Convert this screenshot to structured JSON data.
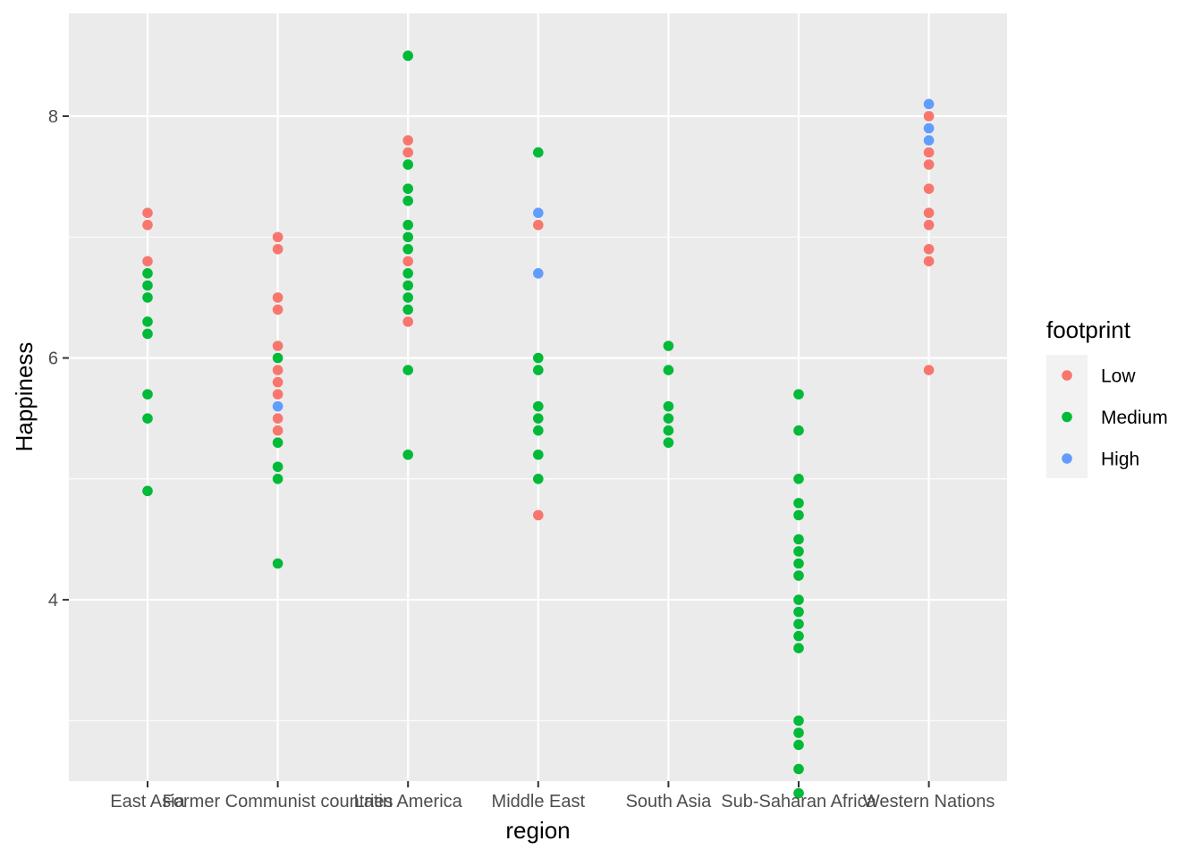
{
  "chart_data": {
    "type": "scatter",
    "title": "",
    "xlabel": "region",
    "ylabel": "Happiness",
    "ylim": [
      2.5,
      8.85
    ],
    "y_ticks": [
      4,
      6,
      8
    ],
    "grid": true,
    "legend_placement": "right",
    "legend_title": "footprint",
    "categories": [
      "East Asia",
      "Former Communist countries",
      "Latin America",
      "Middle East",
      "South Asia",
      "Sub-Saharan Africa",
      "Western Nations"
    ],
    "series": [
      {
        "name": "Low",
        "color": "#F8766D",
        "points": [
          {
            "x": "East Asia",
            "y": 7.2
          },
          {
            "x": "East Asia",
            "y": 7.1
          },
          {
            "x": "East Asia",
            "y": 6.8
          },
          {
            "x": "Former Communist countries",
            "y": 7.0
          },
          {
            "x": "Former Communist countries",
            "y": 6.9
          },
          {
            "x": "Former Communist countries",
            "y": 6.5
          },
          {
            "x": "Former Communist countries",
            "y": 6.4
          },
          {
            "x": "Former Communist countries",
            "y": 6.1
          },
          {
            "x": "Former Communist countries",
            "y": 5.9
          },
          {
            "x": "Former Communist countries",
            "y": 5.8
          },
          {
            "x": "Former Communist countries",
            "y": 5.7
          },
          {
            "x": "Former Communist countries",
            "y": 5.5
          },
          {
            "x": "Former Communist countries",
            "y": 5.4
          },
          {
            "x": "Latin America",
            "y": 7.8
          },
          {
            "x": "Latin America",
            "y": 7.7
          },
          {
            "x": "Latin America",
            "y": 6.8
          },
          {
            "x": "Latin America",
            "y": 6.3
          },
          {
            "x": "Middle East",
            "y": 7.1
          },
          {
            "x": "Middle East",
            "y": 4.7
          },
          {
            "x": "Western Nations",
            "y": 8.0
          },
          {
            "x": "Western Nations",
            "y": 7.7
          },
          {
            "x": "Western Nations",
            "y": 7.6
          },
          {
            "x": "Western Nations",
            "y": 7.4
          },
          {
            "x": "Western Nations",
            "y": 7.2
          },
          {
            "x": "Western Nations",
            "y": 7.1
          },
          {
            "x": "Western Nations",
            "y": 6.9
          },
          {
            "x": "Western Nations",
            "y": 6.8
          },
          {
            "x": "Western Nations",
            "y": 5.9
          }
        ]
      },
      {
        "name": "Medium",
        "color": "#00BA38",
        "points": [
          {
            "x": "East Asia",
            "y": 6.7
          },
          {
            "x": "East Asia",
            "y": 6.6
          },
          {
            "x": "East Asia",
            "y": 6.5
          },
          {
            "x": "East Asia",
            "y": 6.3
          },
          {
            "x": "East Asia",
            "y": 6.2
          },
          {
            "x": "East Asia",
            "y": 5.7
          },
          {
            "x": "East Asia",
            "y": 5.5
          },
          {
            "x": "East Asia",
            "y": 4.9
          },
          {
            "x": "Former Communist countries",
            "y": 6.0
          },
          {
            "x": "Former Communist countries",
            "y": 5.3
          },
          {
            "x": "Former Communist countries",
            "y": 5.1
          },
          {
            "x": "Former Communist countries",
            "y": 5.0
          },
          {
            "x": "Former Communist countries",
            "y": 4.3
          },
          {
            "x": "Latin America",
            "y": 8.5
          },
          {
            "x": "Latin America",
            "y": 7.6
          },
          {
            "x": "Latin America",
            "y": 7.4
          },
          {
            "x": "Latin America",
            "y": 7.3
          },
          {
            "x": "Latin America",
            "y": 7.1
          },
          {
            "x": "Latin America",
            "y": 7.0
          },
          {
            "x": "Latin America",
            "y": 6.9
          },
          {
            "x": "Latin America",
            "y": 6.7
          },
          {
            "x": "Latin America",
            "y": 6.6
          },
          {
            "x": "Latin America",
            "y": 6.5
          },
          {
            "x": "Latin America",
            "y": 6.4
          },
          {
            "x": "Latin America",
            "y": 5.9
          },
          {
            "x": "Latin America",
            "y": 5.2
          },
          {
            "x": "Middle East",
            "y": 7.7
          },
          {
            "x": "Middle East",
            "y": 6.0
          },
          {
            "x": "Middle East",
            "y": 5.9
          },
          {
            "x": "Middle East",
            "y": 5.6
          },
          {
            "x": "Middle East",
            "y": 5.5
          },
          {
            "x": "Middle East",
            "y": 5.4
          },
          {
            "x": "Middle East",
            "y": 5.2
          },
          {
            "x": "Middle East",
            "y": 5.0
          },
          {
            "x": "South Asia",
            "y": 6.1
          },
          {
            "x": "South Asia",
            "y": 5.9
          },
          {
            "x": "South Asia",
            "y": 5.6
          },
          {
            "x": "South Asia",
            "y": 5.5
          },
          {
            "x": "South Asia",
            "y": 5.4
          },
          {
            "x": "South Asia",
            "y": 5.3
          },
          {
            "x": "Sub-Saharan Africa",
            "y": 5.7
          },
          {
            "x": "Sub-Saharan Africa",
            "y": 5.4
          },
          {
            "x": "Sub-Saharan Africa",
            "y": 5.0
          },
          {
            "x": "Sub-Saharan Africa",
            "y": 4.8
          },
          {
            "x": "Sub-Saharan Africa",
            "y": 4.7
          },
          {
            "x": "Sub-Saharan Africa",
            "y": 4.5
          },
          {
            "x": "Sub-Saharan Africa",
            "y": 4.4
          },
          {
            "x": "Sub-Saharan Africa",
            "y": 4.3
          },
          {
            "x": "Sub-Saharan Africa",
            "y": 4.2
          },
          {
            "x": "Sub-Saharan Africa",
            "y": 4.0
          },
          {
            "x": "Sub-Saharan Africa",
            "y": 3.9
          },
          {
            "x": "Sub-Saharan Africa",
            "y": 3.8
          },
          {
            "x": "Sub-Saharan Africa",
            "y": 3.7
          },
          {
            "x": "Sub-Saharan Africa",
            "y": 3.6
          },
          {
            "x": "Sub-Saharan Africa",
            "y": 3.0
          },
          {
            "x": "Sub-Saharan Africa",
            "y": 2.9
          },
          {
            "x": "Sub-Saharan Africa",
            "y": 2.8
          },
          {
            "x": "Sub-Saharan Africa",
            "y": 2.6
          },
          {
            "x": "Sub-Saharan Africa",
            "y": 2.4
          }
        ]
      },
      {
        "name": "High",
        "color": "#619CFF",
        "points": [
          {
            "x": "Former Communist countries",
            "y": 5.6
          },
          {
            "x": "Middle East",
            "y": 7.2
          },
          {
            "x": "Middle East",
            "y": 6.7
          },
          {
            "x": "Western Nations",
            "y": 8.1
          },
          {
            "x": "Western Nations",
            "y": 7.9
          },
          {
            "x": "Western Nations",
            "y": 7.8
          }
        ]
      }
    ]
  }
}
